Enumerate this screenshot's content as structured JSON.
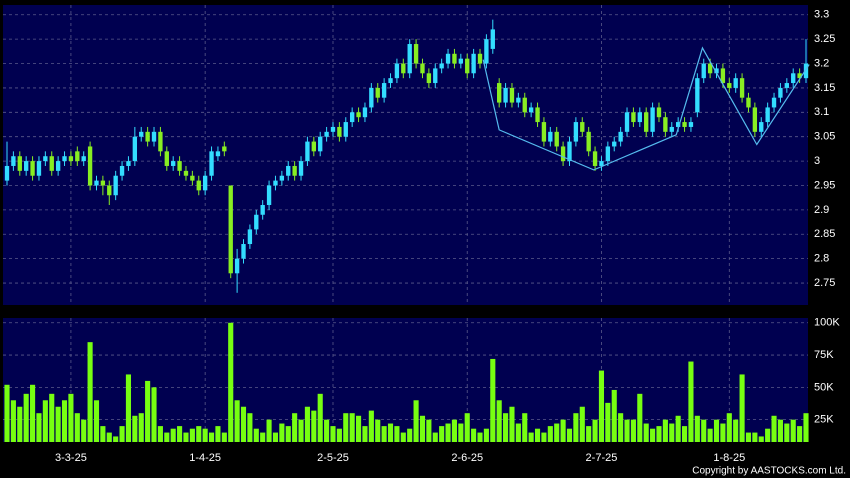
{
  "chart_data": [
    {
      "type": "candlestick",
      "open": [
        2.96,
        2.99,
        3.01,
        2.98,
        3.0,
        2.97,
        3.0,
        3.01,
        2.98,
        3.0,
        3.01,
        3.02,
        3.0,
        3.03,
        2.95,
        2.96,
        2.95,
        2.93,
        2.97,
        2.99,
        3.0,
        3.05,
        3.06,
        3.04,
        3.06,
        3.02,
        2.99,
        3.0,
        2.98,
        2.97,
        2.96,
        2.94,
        2.97,
        3.01,
        3.03,
        2.95,
        2.77,
        2.8,
        2.83,
        2.86,
        2.89,
        2.91,
        2.95,
        2.96,
        2.97,
        2.99,
        2.97,
        3.0,
        3.04,
        3.02,
        3.05,
        3.06,
        3.07,
        3.05,
        3.08,
        3.1,
        3.09,
        3.11,
        3.15,
        3.13,
        3.16,
        3.17,
        3.2,
        3.18,
        3.24,
        3.2,
        3.18,
        3.16,
        3.19,
        3.2,
        3.22,
        3.2,
        3.21,
        3.18,
        3.22,
        3.2,
        3.23,
        3.16,
        3.12,
        3.15,
        3.12,
        3.13,
        3.1,
        3.11,
        3.08,
        3.04,
        3.06,
        3.03,
        3.0,
        3.04,
        3.08,
        3.06,
        3.02,
        2.99,
        3.0,
        3.03,
        3.04,
        3.06,
        3.1,
        3.08,
        3.1,
        3.06,
        3.11,
        3.09,
        3.06,
        3.07,
        3.08,
        3.07,
        3.1,
        3.17,
        3.2,
        3.18,
        3.19,
        3.16,
        3.15,
        3.17,
        3.13,
        3.11,
        3.06,
        3.08,
        3.11,
        3.13,
        3.15,
        3.16,
        3.18,
        3.17
      ],
      "high": [
        3.04,
        3.02,
        3.02,
        3.01,
        3.01,
        3.01,
        3.02,
        3.02,
        3.01,
        3.02,
        3.02,
        3.03,
        3.02,
        3.04,
        2.97,
        2.97,
        2.96,
        2.98,
        3.0,
        3.01,
        3.07,
        3.07,
        3.07,
        3.07,
        3.07,
        3.03,
        3.01,
        3.01,
        2.99,
        2.98,
        2.97,
        2.98,
        3.03,
        3.03,
        3.04,
        2.95,
        2.82,
        2.84,
        2.87,
        2.9,
        2.92,
        2.96,
        2.97,
        2.98,
        3.0,
        3.0,
        3.01,
        3.05,
        3.05,
        3.06,
        3.07,
        3.08,
        3.08,
        3.09,
        3.11,
        3.11,
        3.12,
        3.16,
        3.16,
        3.17,
        3.18,
        3.21,
        3.21,
        3.25,
        3.25,
        3.21,
        3.19,
        3.2,
        3.21,
        3.23,
        3.23,
        3.22,
        3.22,
        3.23,
        3.23,
        3.26,
        3.29,
        3.17,
        3.16,
        3.16,
        3.14,
        3.14,
        3.12,
        3.12,
        3.09,
        3.07,
        3.07,
        3.04,
        3.05,
        3.09,
        3.09,
        3.07,
        3.03,
        3.01,
        3.04,
        3.05,
        3.07,
        3.11,
        3.11,
        3.11,
        3.11,
        3.12,
        3.12,
        3.1,
        3.08,
        3.09,
        3.09,
        3.09,
        3.18,
        3.21,
        3.21,
        3.2,
        3.2,
        3.17,
        3.18,
        3.18,
        3.14,
        3.12,
        3.09,
        3.12,
        3.14,
        3.16,
        3.17,
        3.19,
        3.19,
        3.25
      ],
      "low": [
        2.95,
        2.98,
        2.97,
        2.97,
        2.96,
        2.96,
        2.99,
        2.97,
        2.97,
        2.99,
        2.99,
        2.99,
        2.99,
        2.94,
        2.94,
        2.93,
        2.91,
        2.92,
        2.96,
        2.98,
        2.99,
        3.04,
        3.03,
        3.03,
        3.01,
        2.98,
        2.98,
        2.97,
        2.96,
        2.95,
        2.93,
        2.93,
        2.96,
        3.0,
        3.01,
        2.76,
        2.73,
        2.79,
        2.82,
        2.85,
        2.88,
        2.9,
        2.94,
        2.95,
        2.96,
        2.96,
        2.96,
        2.99,
        3.01,
        3.01,
        3.04,
        3.05,
        3.04,
        3.04,
        3.07,
        3.08,
        3.08,
        3.1,
        3.12,
        3.12,
        3.15,
        3.16,
        3.17,
        3.17,
        3.19,
        3.17,
        3.15,
        3.15,
        3.18,
        3.19,
        3.19,
        3.19,
        3.17,
        3.17,
        3.19,
        3.19,
        3.22,
        3.11,
        3.11,
        3.11,
        3.11,
        3.09,
        3.09,
        3.07,
        3.03,
        3.03,
        3.02,
        2.99,
        2.99,
        3.03,
        3.05,
        3.01,
        2.98,
        2.98,
        2.99,
        3.02,
        3.03,
        3.05,
        3.07,
        3.07,
        3.05,
        3.05,
        3.08,
        3.05,
        3.05,
        3.06,
        3.06,
        3.06,
        3.09,
        3.16,
        3.17,
        3.17,
        3.15,
        3.14,
        3.14,
        3.12,
        3.1,
        3.05,
        3.05,
        3.07,
        3.1,
        3.12,
        3.14,
        3.15,
        3.16,
        3.16
      ],
      "close": [
        2.99,
        3.01,
        2.98,
        3.0,
        2.97,
        3.0,
        3.01,
        2.98,
        3.0,
        3.01,
        3.0,
        3.0,
        3.01,
        2.95,
        2.96,
        2.95,
        2.93,
        2.97,
        2.99,
        3.0,
        3.05,
        3.06,
        3.04,
        3.06,
        3.02,
        2.99,
        3.0,
        2.98,
        2.97,
        2.96,
        2.94,
        2.97,
        3.02,
        3.02,
        3.02,
        2.77,
        2.8,
        2.83,
        2.86,
        2.89,
        2.91,
        2.95,
        2.96,
        2.97,
        2.99,
        2.97,
        3.0,
        3.04,
        3.02,
        3.05,
        3.06,
        3.07,
        3.05,
        3.08,
        3.1,
        3.09,
        3.11,
        3.15,
        3.13,
        3.16,
        3.17,
        3.2,
        3.18,
        3.24,
        3.2,
        3.18,
        3.16,
        3.19,
        3.2,
        3.22,
        3.2,
        3.21,
        3.18,
        3.22,
        3.2,
        3.25,
        3.27,
        3.12,
        3.15,
        3.12,
        3.13,
        3.1,
        3.11,
        3.08,
        3.04,
        3.06,
        3.03,
        3.0,
        3.04,
        3.08,
        3.06,
        3.02,
        2.99,
        3.0,
        3.03,
        3.04,
        3.06,
        3.1,
        3.08,
        3.1,
        3.06,
        3.11,
        3.09,
        3.06,
        3.07,
        3.08,
        3.07,
        3.08,
        3.17,
        3.2,
        3.18,
        3.19,
        3.16,
        3.15,
        3.17,
        3.13,
        3.11,
        3.06,
        3.08,
        3.11,
        3.13,
        3.15,
        3.16,
        3.18,
        3.17,
        3.2
      ],
      "up_color": "#33ddff",
      "down_color": "#88ee22",
      "ylim": [
        2.705,
        3.32
      ],
      "yticks": [
        2.75,
        2.8,
        2.85,
        2.9,
        2.95,
        3,
        3.05,
        3.1,
        3.15,
        3.2,
        3.25,
        3.3
      ],
      "grid": true,
      "pattern_line": {
        "color": "#55bbee",
        "x": [
          74.5,
          77,
          91.8,
          104.7,
          108.8,
          117.3,
          125.5
        ],
        "y": [
          3.208,
          3.064,
          2.982,
          3.054,
          3.232,
          3.034,
          3.198
        ]
      }
    },
    {
      "type": "bar",
      "categories": [
        null,
        null,
        null,
        null,
        null,
        null,
        null,
        null,
        null,
        null,
        "3-3-25",
        null,
        null,
        null,
        null,
        null,
        null,
        null,
        null,
        null,
        null,
        null,
        null,
        null,
        null,
        null,
        null,
        null,
        null,
        null,
        null,
        "1-4-25",
        null,
        null,
        null,
        null,
        null,
        null,
        null,
        null,
        null,
        null,
        null,
        null,
        null,
        null,
        null,
        null,
        null,
        null,
        null,
        "2-5-25",
        null,
        null,
        null,
        null,
        null,
        null,
        null,
        null,
        null,
        null,
        null,
        null,
        null,
        null,
        null,
        null,
        null,
        null,
        null,
        null,
        "2-6-25",
        null,
        null,
        null,
        null,
        null,
        null,
        null,
        null,
        null,
        null,
        null,
        null,
        null,
        null,
        null,
        null,
        null,
        null,
        null,
        null,
        "2-7-25",
        null,
        null,
        null,
        null,
        null,
        null,
        null,
        null,
        null,
        null,
        null,
        null,
        null,
        null,
        null,
        null,
        null,
        null,
        null,
        "1-8-25",
        null,
        null,
        null,
        null,
        null,
        null,
        null,
        null,
        null,
        null,
        null,
        null
      ],
      "values": [
        52000,
        40000,
        35000,
        45000,
        52000,
        30000,
        40000,
        45000,
        35000,
        40000,
        45000,
        30000,
        25000,
        85000,
        40000,
        20000,
        15000,
        12000,
        20000,
        60000,
        28000,
        30000,
        55000,
        50000,
        20000,
        15000,
        18000,
        20000,
        15000,
        18000,
        20000,
        18000,
        15000,
        20000,
        15000,
        100000,
        40000,
        35000,
        30000,
        18000,
        15000,
        25000,
        15000,
        22000,
        20000,
        30000,
        25000,
        35000,
        32000,
        45000,
        25000,
        20000,
        18000,
        30000,
        30000,
        28000,
        20000,
        32000,
        25000,
        20000,
        22000,
        20000,
        15000,
        18000,
        40000,
        28000,
        25000,
        15000,
        20000,
        22000,
        25000,
        22000,
        30000,
        18000,
        15000,
        18000,
        72000,
        40000,
        30000,
        35000,
        22000,
        30000,
        15000,
        18000,
        15000,
        20000,
        22000,
        25000,
        18000,
        30000,
        35000,
        20000,
        25000,
        63000,
        38000,
        48000,
        30000,
        25000,
        25000,
        45000,
        22000,
        18000,
        20000,
        25000,
        22000,
        28000,
        20000,
        70000,
        28000,
        25000,
        18000,
        25000,
        22000,
        30000,
        25000,
        60000,
        15000,
        15000,
        12000,
        18000,
        28000,
        25000,
        22000,
        25000,
        20000,
        30000
      ],
      "color": "#77ff11",
      "ylim": [
        7700,
        103700
      ],
      "yticks": [
        {
          "value": 25000,
          "label": "25K"
        },
        {
          "value": 50000,
          "label": "50K"
        },
        {
          "value": 75000,
          "label": "75K"
        },
        {
          "value": 100000,
          "label": "100K"
        }
      ],
      "grid": true
    }
  ],
  "copyright": "Copyright by AASTOCKS.com Ltd."
}
